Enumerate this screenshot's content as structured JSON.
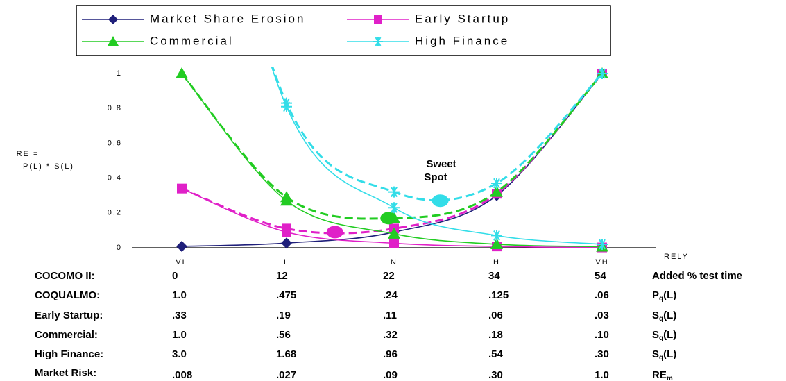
{
  "chart_data": {
    "type": "line",
    "ylabel": [
      "RE =",
      "P(L) * S(L)"
    ],
    "xlabel": "RELY",
    "annotation": [
      "Sweet",
      "Spot"
    ],
    "categories": [
      "VL",
      "L",
      "N",
      "H",
      "VH"
    ],
    "ylim": [
      0,
      1
    ],
    "yticks": [
      0,
      0.2,
      0.4,
      0.6,
      0.8,
      1
    ],
    "series": [
      {
        "name": "Market Share Erosion",
        "color": "#1f1f7a",
        "marker": "diamond",
        "values": [
          0.008,
          0.027,
          0.09,
          0.3,
          1.0
        ]
      },
      {
        "name": "Early Startup",
        "color": "#e020c8",
        "marker": "square",
        "values": [
          0.34,
          0.09,
          0.026,
          0.0075,
          0.0018
        ],
        "combined": [
          0.34,
          0.11,
          0.11,
          0.31,
          1.0
        ],
        "sweet_spot": {
          "x": 1.45,
          "y": 0.09
        }
      },
      {
        "name": "Commercial",
        "color": "#22cc22",
        "marker": "triangle",
        "values": [
          1.0,
          0.27,
          0.08,
          0.02,
          0.006
        ],
        "combined": [
          1.0,
          0.29,
          0.17,
          0.32,
          1.0
        ],
        "sweet_spot": {
          "x": 1.95,
          "y": 0.17
        }
      },
      {
        "name": "High Finance",
        "color": "#33dde8",
        "marker": "star",
        "values": [
          3.0,
          0.81,
          0.23,
          0.07,
          0.02
        ],
        "combined": [
          3.0,
          0.83,
          0.32,
          0.37,
          1.0
        ],
        "sweet_spot": {
          "x": 2.45,
          "y": 0.27
        }
      }
    ]
  },
  "table": {
    "rows": [
      {
        "label": "COCOMO II:",
        "cells": [
          "0",
          "12",
          "22",
          "34",
          "54"
        ],
        "unit": {
          "main": "Added % test time"
        }
      },
      {
        "label": "COQUALMO:",
        "cells": [
          "1.0",
          ".475",
          ".24",
          ".125",
          ".06"
        ],
        "unit": {
          "main": "P",
          "sub": "q",
          "rest": "(L)"
        }
      },
      {
        "label": "Early Startup:",
        "cells": [
          ".33",
          ".19",
          ".11",
          ".06",
          ".03"
        ],
        "unit": {
          "main": "S",
          "sub": "q",
          "rest": "(L)"
        }
      },
      {
        "label": "Commercial:",
        "cells": [
          "1.0",
          ".56",
          ".32",
          ".18",
          ".10"
        ],
        "unit": {
          "main": "S",
          "sub": "q",
          "rest": "(L)"
        }
      },
      {
        "label": "High Finance:",
        "cells": [
          "3.0",
          "1.68",
          ".96",
          ".54",
          ".30"
        ],
        "unit": {
          "main": "S",
          "sub": "q",
          "rest": "(L)"
        }
      },
      {
        "label": "Market Risk:",
        "cells": [
          ".008",
          ".027",
          ".09",
          ".30",
          "1.0"
        ],
        "unit": {
          "main": "RE",
          "sub": "m"
        }
      }
    ]
  }
}
